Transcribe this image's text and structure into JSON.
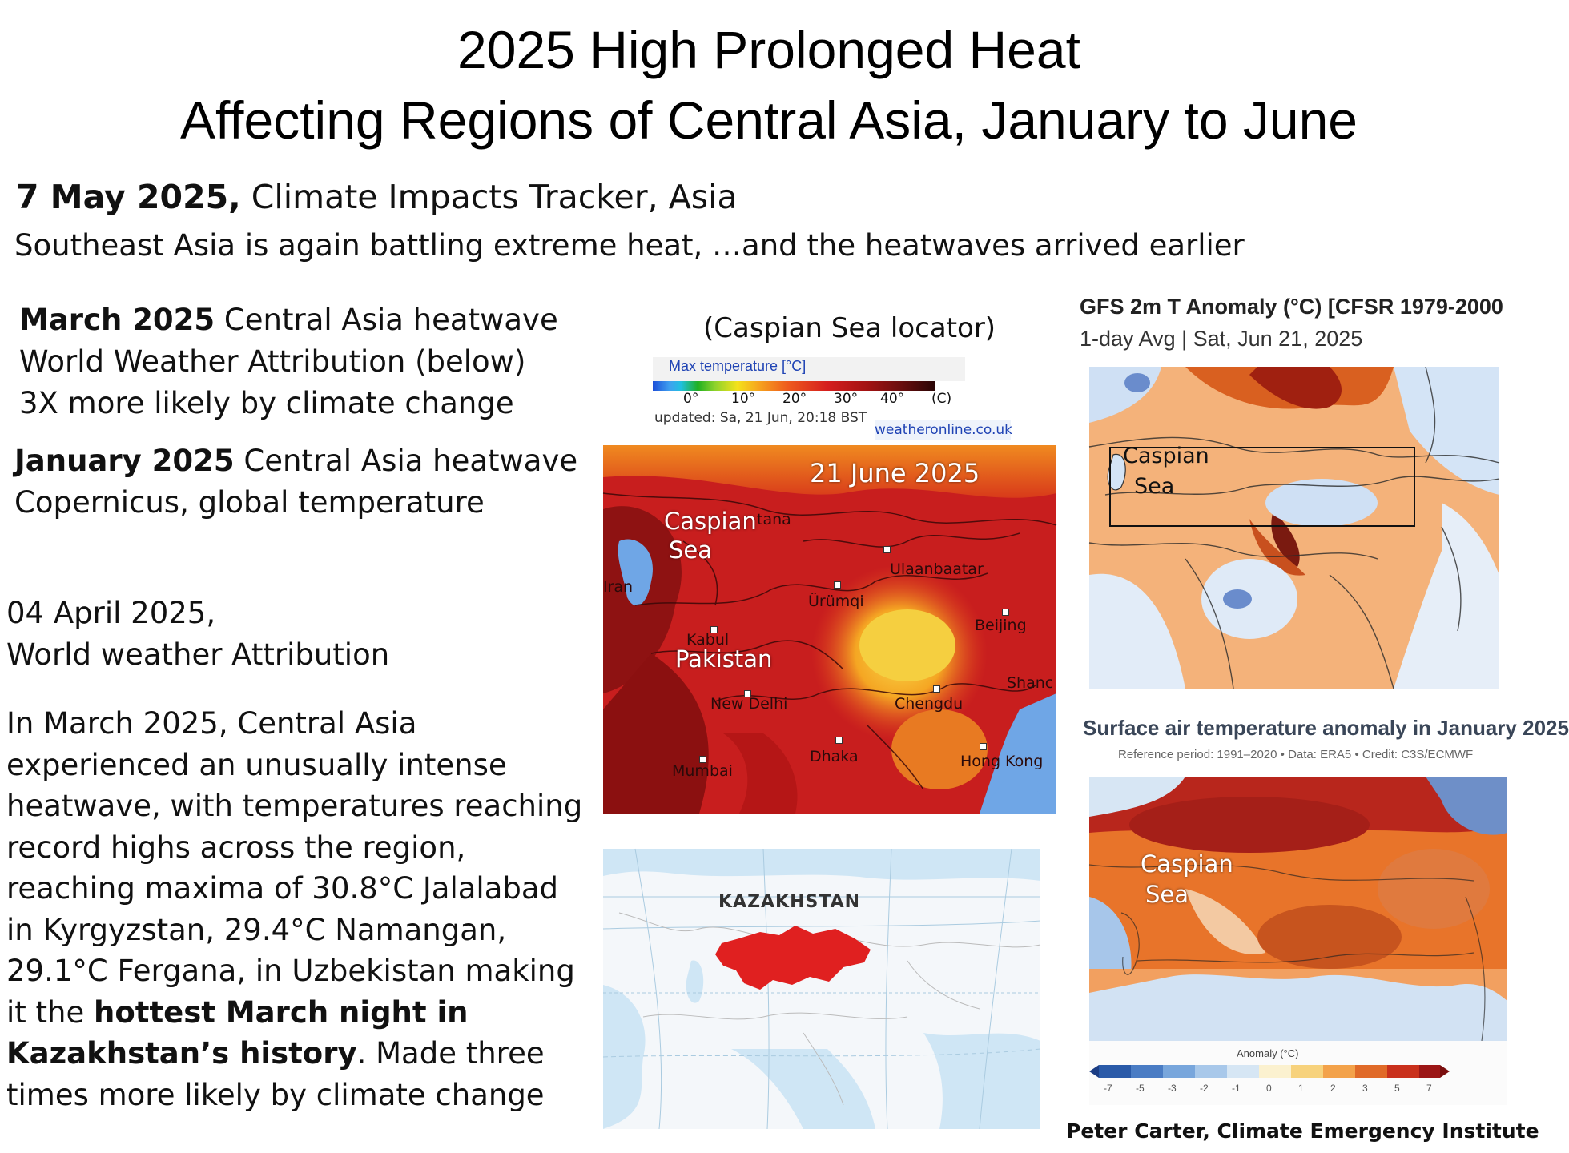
{
  "title": {
    "line1": "2025 High Prolonged Heat",
    "line2": "Affecting Regions of Central Asia, January to June"
  },
  "intro": {
    "date": "7 May 2025,",
    "source": " Climate Impacts Tracker, Asia",
    "line2": "Southeast Asia is again battling extreme heat, …and  the heatwaves arrived earlier"
  },
  "march_block": {
    "date": "March 2025",
    "l1_rest": " Central  Asia heatwave",
    "l2": "World Weather Attribution (below)",
    "l3": "3X more likely by climate change"
  },
  "january_block": {
    "date": "January  2025",
    "l1_rest": " Central  Asia heatwave",
    "l2": "Copernicus, global temperature"
  },
  "april_block": {
    "l1": "04 April 2025,",
    "l2": "World weather Attribution"
  },
  "body": {
    "l1": "In March 2025, Central Asia",
    "l2": "experienced an unusually intense",
    "l3": "heatwave, with temperatures reaching",
    "l4": "record highs across the region,",
    "l5": "reaching maxima of 30.8°C Jalalabad",
    "l6": "in Kyrgyzstan, 29.4°C Namangan,",
    "l7": "29.1°C Fergana, in Uzbekistan making",
    "l8_pre": "it the ",
    "l8_bold": "hottest March night in",
    "l9_bold": "Kazakhstan’s history",
    "l9_rest": ". Made three",
    "l10": "times more likely by climate change"
  },
  "weatheronline": {
    "locator": "(Caspian Sea locator)",
    "legend_title": "Max temperature [°C]",
    "scale_labels": [
      "0°",
      "10°",
      "20°",
      "30°",
      "40°",
      "(C)"
    ],
    "updated": "updated: Sa, 21 Jun, 20:18 BST",
    "site": "weatheronline.co.uk",
    "date_label": "21 June 2025",
    "caspian_1": "Caspian",
    "caspian_2": "Sea",
    "pakistan": "Pakistan",
    "cities": {
      "astana": "tana",
      "iran": "Iran",
      "ulaanbaatar": "Ulaanbaatar",
      "urumqi": "Ürümqi",
      "beijing": "Beijing",
      "kabul": "Kabul",
      "shanghai": "Shanc",
      "new_delhi": "New Delhi",
      "chengdu": "Chengdu",
      "dhaka": "Dhaka",
      "mumbai": "Mumbai",
      "hong_kong": "Hong Kong"
    }
  },
  "kazakhstan_map": {
    "label": "KAZAKHSTAN"
  },
  "gfs": {
    "title": "GFS 2m T Anomaly (°C) [CFSR 1979-2000",
    "subtitle": "1-day Avg | Sat, Jun 21, 2025",
    "caspian_1": "Caspian",
    "caspian_2": "Sea"
  },
  "copernicus": {
    "title": "Surface air temperature anomaly in January 2025",
    "subtitle": "Reference period: 1991–2020 • Data: ERA5 • Credit: C3S/ECMWF",
    "caspian_1": "Caspian",
    "caspian_2": "Sea",
    "legend_title": "Anomaly (°C)",
    "scale": [
      "-7",
      "-5",
      "-3",
      "-2",
      "-1",
      "0",
      "1",
      "2",
      "3",
      "5",
      "7"
    ]
  },
  "credit": "Peter Carter,  Climate  Emergency Institute",
  "colors": {
    "heat_dark": "#7a0c0c",
    "heat_red": "#c81e1e",
    "heat_orange": "#f07820",
    "heat_yellow": "#f5c73a",
    "water_blue": "#6fa6e6",
    "kazakh_red": "#e02020"
  }
}
